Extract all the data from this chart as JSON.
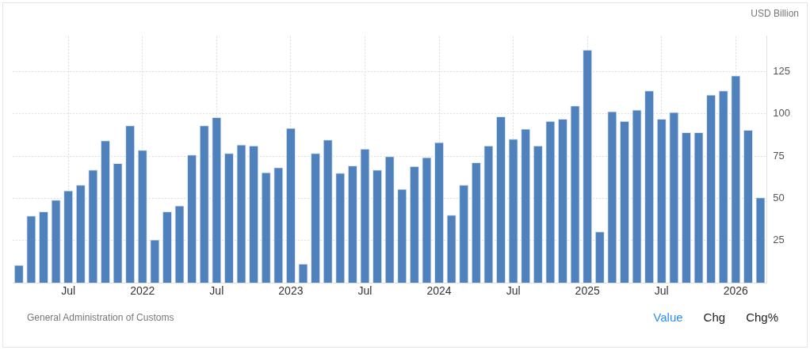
{
  "chart_data": {
    "type": "bar",
    "ylabel": "USD Billion",
    "color": "#4f81bd",
    "categories": [
      null,
      null,
      null,
      null,
      "Jul",
      null,
      null,
      null,
      null,
      null,
      "2022",
      null,
      null,
      null,
      null,
      null,
      "Jul",
      null,
      null,
      null,
      null,
      null,
      "2023",
      null,
      null,
      null,
      null,
      null,
      "Jul",
      null,
      null,
      null,
      null,
      null,
      "2024",
      null,
      null,
      null,
      null,
      null,
      "Jul",
      null,
      null,
      null,
      null,
      null,
      "2025",
      null,
      null,
      null,
      null,
      null,
      "Jul",
      null,
      null,
      null,
      null,
      null,
      "2026",
      null,
      null
    ],
    "values": [
      10.6,
      39.8,
      42.3,
      49.2,
      54.7,
      58.1,
      67.0,
      84.4,
      70.9,
      93.3,
      78.8,
      25.6,
      42.3,
      45.8,
      75.9,
      93.3,
      98.1,
      76.9,
      81.9,
      81.3,
      65.5,
      68.4,
      91.7,
      11.3,
      76.9,
      84.8,
      65.2,
      69.5,
      79.4,
      67.0,
      75.0,
      55.6,
      69.1,
      74.4,
      83.3,
      40.3,
      58.1,
      71.4,
      81.3,
      98.6,
      85.3,
      91.3,
      81.3,
      95.8,
      97.2,
      105,
      138,
      30.5,
      101.6,
      95.8,
      102.5,
      113.9,
      97.2,
      101.1,
      89.2,
      89.2,
      111.4,
      113.9,
      122.8,
      90.6,
      50.6
    ],
    "ylim": [
      0,
      146
    ],
    "yticks": [
      25,
      50,
      75,
      100,
      125
    ],
    "grid": true,
    "legend": false,
    "annotations": [
      "General Administration of Customs",
      "Value",
      "Chg",
      "Chg%"
    ]
  }
}
